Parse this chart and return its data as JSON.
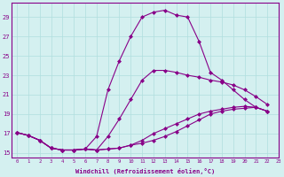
{
  "xlabel": "Windchill (Refroidissement éolien,°C)",
  "bg_color": "#d4f0f0",
  "line_color": "#880088",
  "grid_color": "#b0dede",
  "xlim": [
    -0.5,
    23
  ],
  "ylim": [
    14.5,
    30.5
  ],
  "yticks": [
    15,
    17,
    19,
    21,
    23,
    25,
    27,
    29
  ],
  "xticks": [
    0,
    1,
    2,
    3,
    4,
    5,
    6,
    7,
    8,
    9,
    10,
    11,
    12,
    13,
    14,
    15,
    16,
    17,
    18,
    19,
    20,
    21,
    22,
    23
  ],
  "series": [
    {
      "x": [
        0,
        1,
        2,
        3,
        4,
        5,
        6,
        7,
        8,
        9,
        10,
        11,
        12,
        13,
        14,
        15,
        16,
        17,
        18,
        19,
        20,
        21,
        22
      ],
      "y": [
        17.1,
        16.8,
        16.3,
        15.5,
        15.3,
        15.3,
        15.4,
        15.3,
        15.4,
        15.5,
        15.8,
        16.0,
        16.3,
        16.7,
        17.2,
        17.8,
        18.4,
        19.0,
        19.3,
        19.5,
        19.6,
        19.7,
        19.3
      ],
      "marker": "D"
    },
    {
      "x": [
        0,
        1,
        2,
        3,
        4,
        5,
        6,
        7,
        8,
        9,
        10,
        11,
        12,
        13,
        14,
        15,
        16,
        17,
        18,
        19,
        20,
        21,
        22
      ],
      "y": [
        17.1,
        16.8,
        16.3,
        15.5,
        15.3,
        15.3,
        15.4,
        15.3,
        16.7,
        18.5,
        20.5,
        22.5,
        23.5,
        23.5,
        23.3,
        23.0,
        22.8,
        22.5,
        22.3,
        22.0,
        21.5,
        20.8,
        20.0
      ],
      "marker": "D"
    },
    {
      "x": [
        0,
        1,
        2,
        3,
        4,
        5,
        6,
        7,
        8,
        9,
        10,
        11,
        12,
        13,
        14,
        15,
        16,
        17,
        18,
        19,
        20,
        21,
        22
      ],
      "y": [
        17.1,
        16.8,
        16.3,
        15.5,
        15.3,
        15.3,
        15.4,
        16.7,
        21.5,
        24.5,
        27.0,
        29.0,
        29.5,
        29.7,
        29.2,
        29.0,
        26.5,
        23.3,
        22.5,
        21.5,
        20.5,
        19.7,
        19.3
      ],
      "marker": "D"
    },
    {
      "x": [
        0,
        1,
        2,
        3,
        4,
        5,
        6,
        7,
        8,
        9,
        10,
        11,
        12,
        13,
        14,
        15,
        16,
        17,
        18,
        19,
        20,
        21,
        22
      ],
      "y": [
        17.1,
        16.8,
        16.3,
        15.5,
        15.3,
        15.3,
        15.4,
        15.3,
        15.4,
        15.5,
        15.8,
        16.3,
        17.0,
        17.5,
        18.0,
        18.5,
        19.0,
        19.3,
        19.5,
        19.7,
        19.8,
        19.7,
        19.3
      ],
      "marker": "D"
    }
  ]
}
